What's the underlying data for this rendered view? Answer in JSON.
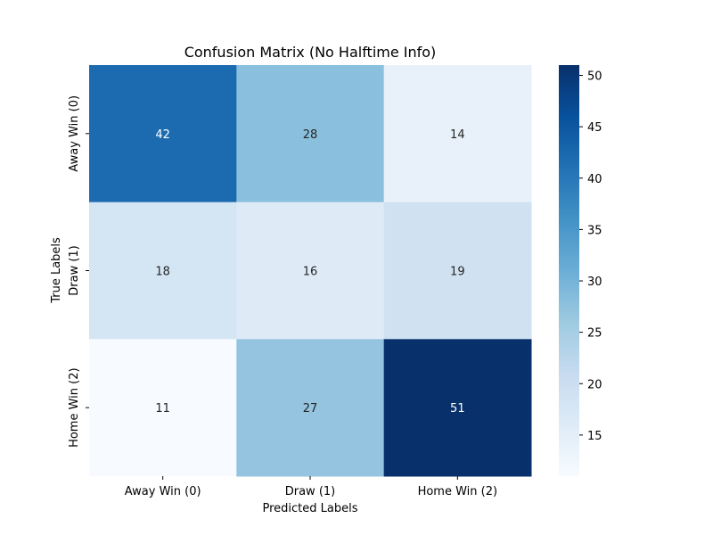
{
  "chart_data": {
    "type": "heatmap",
    "title": "Confusion Matrix (No Halftime Info)",
    "xlabel": "Predicted Labels",
    "ylabel": "True Labels",
    "x_categories": [
      "Away Win (0)",
      "Draw (1)",
      "Home Win (2)"
    ],
    "y_categories": [
      "Away Win (0)",
      "Draw (1)",
      "Home Win (2)"
    ],
    "values": [
      [
        42,
        28,
        14
      ],
      [
        18,
        16,
        19
      ],
      [
        11,
        27,
        51
      ]
    ],
    "colormap": "Blues",
    "colorbar": {
      "min": 11,
      "max": 51,
      "ticks": [
        15,
        20,
        25,
        30,
        35,
        40,
        45,
        50
      ]
    }
  }
}
